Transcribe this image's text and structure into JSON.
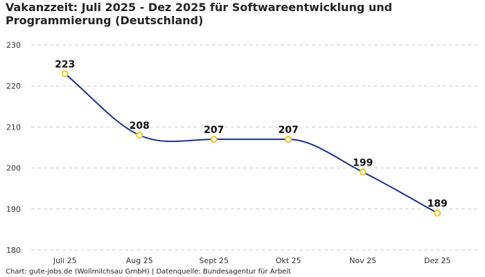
{
  "chart_data": {
    "type": "line",
    "title": "Vakanzzeit: Juli 2025 - Dez 2025 für Softwareentwicklung und Programmierung (Deutschland)",
    "xlabel": "",
    "ylabel": "",
    "categories": [
      "Juli 25",
      "Aug 25",
      "Sept 25",
      "Okt 25",
      "Nov 25",
      "Dez 25"
    ],
    "values": [
      223,
      208,
      207,
      207,
      199,
      189
    ],
    "ylim": [
      180,
      230
    ],
    "yticks": [
      180,
      190,
      200,
      210,
      220,
      230
    ],
    "grid": true,
    "line_color": "#1a2f8f",
    "marker_color": "#f5c518",
    "gridline_color": "#cccccc"
  },
  "footer": "Chart: gute-jobs.de (Wollmilchsau GmbH) | Datenquelle: Bundesagentur für Arbeit"
}
